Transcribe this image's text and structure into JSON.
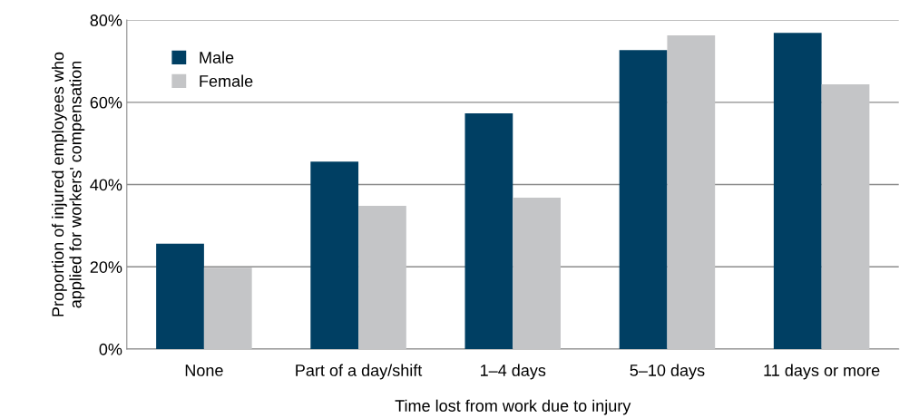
{
  "chart_data": {
    "type": "bar",
    "xlabel": "Time lost from work due to injury",
    "ylabel": "Proportion of injured employees who\napplied for workers' compensation",
    "categories": [
      "None",
      "Part of a day/shift",
      "1–4 days",
      "5–10 days",
      "11 days or more"
    ],
    "series": [
      {
        "name": "Male",
        "color": "#003f63",
        "values": [
          25.6,
          45.6,
          57.3,
          72.7,
          76.9
        ]
      },
      {
        "name": "Female",
        "color": "#c4c5c7",
        "values": [
          19.8,
          34.8,
          36.8,
          76.3,
          64.4
        ]
      }
    ],
    "ylim": [
      0,
      80
    ],
    "yticks": [
      {
        "value": 0,
        "label": "0%"
      },
      {
        "value": 20,
        "label": "20%"
      },
      {
        "value": 40,
        "label": "40%"
      },
      {
        "value": 60,
        "label": "60%"
      },
      {
        "value": 80,
        "label": "80%"
      }
    ],
    "grid": "y",
    "legend": "top left"
  }
}
